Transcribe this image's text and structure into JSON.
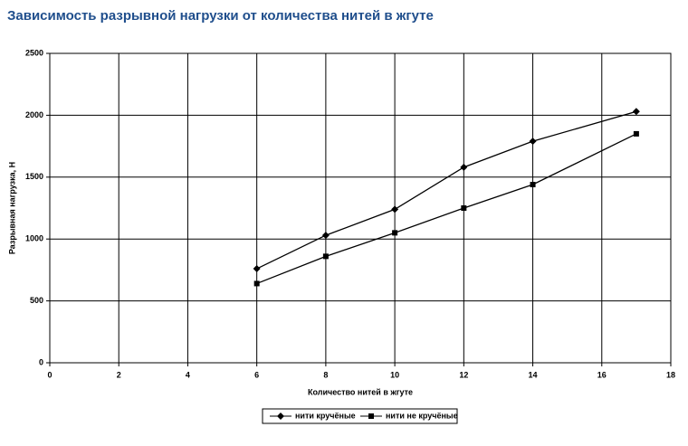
{
  "chart_data": {
    "type": "line",
    "title": "Зависимость разрывной нагрузки от количества нитей в жгуте",
    "x_label": "Количество нитей в жгуте",
    "y_label": "Разрывная нагрузка, Н",
    "x": [
      6,
      8,
      10,
      12,
      14,
      17
    ],
    "series": [
      {
        "name": "нити кручёные",
        "color": "#000000",
        "marker": "diamond",
        "values": [
          760,
          1030,
          1240,
          1580,
          1790,
          2030
        ]
      },
      {
        "name": "нити не кручёные",
        "color": "#000000",
        "marker": "square",
        "values": [
          640,
          860,
          1050,
          1250,
          1440,
          1850
        ]
      }
    ],
    "xlim": [
      0,
      18
    ],
    "xticks": [
      0,
      2,
      4,
      6,
      8,
      10,
      12,
      14,
      16,
      18
    ],
    "ylim": [
      0,
      2500
    ],
    "yticks": [
      0,
      500,
      1000,
      1500,
      2000,
      2500
    ],
    "grid": true,
    "legend": "bottom"
  }
}
